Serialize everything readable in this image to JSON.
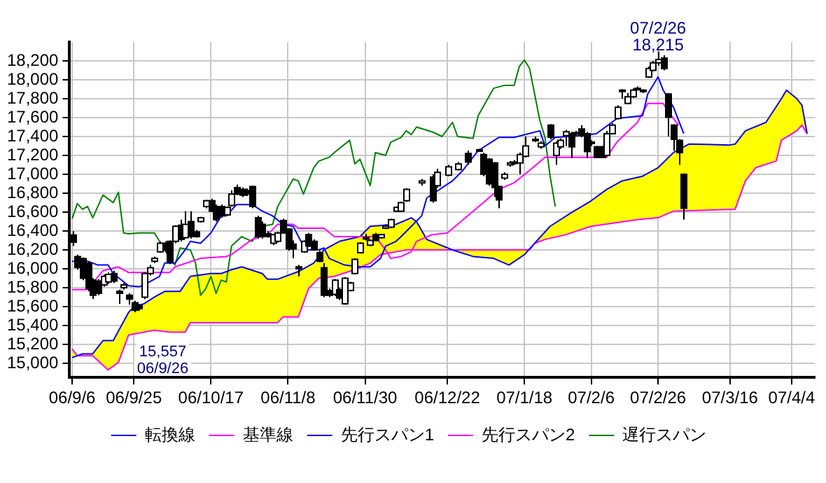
{
  "chart_data": {
    "type": "candlestick",
    "categories": [
      "06/9/6",
      null,
      null,
      null,
      null,
      null,
      null,
      null,
      null,
      null,
      null,
      null,
      "06/9/25",
      null,
      null,
      null,
      null,
      null,
      null,
      null,
      null,
      null,
      null,
      null,
      null,
      null,
      null,
      "06/10/17",
      null,
      null,
      null,
      null,
      null,
      null,
      null,
      null,
      null,
      null,
      null,
      null,
      null,
      null,
      "06/11/8",
      null,
      null,
      null,
      null,
      null,
      null,
      null,
      null,
      null,
      null,
      null,
      null,
      null,
      null,
      "06/11/30",
      null,
      null,
      null,
      null,
      null,
      null,
      null,
      null,
      null,
      null,
      null,
      null,
      null,
      null,
      null,
      "06/12/22",
      null,
      null,
      null,
      null,
      null,
      null,
      null,
      null,
      null,
      null,
      null,
      null,
      null,
      null,
      "07/1/18",
      null,
      null,
      null,
      null,
      null,
      null,
      null,
      null,
      null,
      null,
      null,
      null,
      "07/2/6",
      null,
      null,
      null,
      null,
      null,
      null,
      null,
      null,
      null,
      null,
      null,
      null,
      "07/2/26",
      null,
      null,
      null,
      null,
      null,
      null,
      null,
      null,
      null,
      null,
      null,
      null,
      null,
      "07/3/16",
      null,
      null,
      null,
      null,
      null,
      null,
      null,
      null,
      null,
      null,
      null,
      "07/4/4",
      null,
      null,
      null,
      null
    ],
    "ohlc": [
      [
        16358,
        16400,
        16240,
        16281
      ],
      [
        16130,
        16150,
        15990,
        16015
      ],
      [
        16107,
        16120,
        15880,
        15900
      ],
      [
        16060,
        16080,
        15760,
        15790
      ],
      [
        15880,
        15900,
        15680,
        15720
      ],
      [
        15870,
        15890,
        15720,
        15740
      ],
      [
        15830,
        15940,
        15810,
        15920
      ],
      [
        15860,
        15960,
        15840,
        15940
      ],
      [
        15950,
        15980,
        15850,
        15870
      ],
      [
        15760,
        15780,
        15630,
        15740
      ],
      [
        15800,
        15850,
        15780,
        15830
      ],
      [
        15720,
        15740,
        15620,
        15680
      ],
      [
        15640,
        15660,
        15540,
        15560
      ],
      [
        15610,
        15630,
        15557,
        15580
      ],
      [
        15700,
        15960,
        15680,
        15950
      ],
      [
        15950,
        16040,
        15930,
        16010
      ],
      [
        16080,
        16130,
        16060,
        16110
      ],
      [
        16180,
        16290,
        16170,
        16270
      ],
      [
        16270,
        16290,
        16180,
        16200
      ],
      [
        16290,
        16300,
        16050,
        16070
      ],
      [
        16290,
        16460,
        16270,
        16450
      ],
      [
        16460,
        16520,
        16290,
        16310
      ],
      [
        16330,
        16610,
        16320,
        16470
      ],
      [
        16500,
        16610,
        16320,
        16340
      ],
      [
        16390,
        16410,
        16330,
        16340
      ],
      [
        16500,
        16550,
        16490,
        16540
      ],
      [
        16660,
        16730,
        16640,
        16720
      ],
      [
        16720,
        16740,
        16600,
        16610
      ],
      [
        16660,
        16680,
        16500,
        16520
      ],
      [
        16660,
        16680,
        16540,
        16560
      ],
      [
        16570,
        16660,
        16560,
        16650
      ],
      [
        16670,
        16830,
        16660,
        16790
      ],
      [
        16860,
        16890,
        16780,
        16790
      ],
      [
        16840,
        16860,
        16760,
        16780
      ],
      [
        16830,
        16850,
        16770,
        16790
      ],
      [
        16870,
        16880,
        16640,
        16660
      ],
      [
        16540,
        16560,
        16320,
        16340
      ],
      [
        16470,
        16500,
        16320,
        16340
      ],
      [
        16370,
        16400,
        16330,
        16340
      ],
      [
        16270,
        16370,
        16250,
        16360
      ],
      [
        16290,
        16390,
        16280,
        16380
      ],
      [
        16510,
        16530,
        16370,
        16380
      ],
      [
        16420,
        16430,
        16190,
        16210
      ],
      [
        16260,
        16300,
        16110,
        16210
      ],
      [
        16020,
        16040,
        15920,
        16000
      ],
      [
        16180,
        16300,
        16170,
        16290
      ],
      [
        16360,
        16380,
        16230,
        16240
      ],
      [
        16290,
        16310,
        16190,
        16200
      ],
      [
        16170,
        16190,
        16070,
        16080
      ],
      [
        16010,
        16060,
        15700,
        15720
      ],
      [
        15770,
        15790,
        15700,
        15720
      ],
      [
        15730,
        15890,
        15710,
        15880
      ],
      [
        15780,
        15800,
        15670,
        15690
      ],
      [
        15630,
        15910,
        15620,
        15900
      ],
      [
        15770,
        15860,
        15760,
        15850
      ],
      [
        15950,
        16110,
        15940,
        16100
      ],
      [
        16170,
        16280,
        16160,
        16270
      ],
      [
        16320,
        16370,
        16300,
        16330
      ],
      [
        16250,
        16310,
        16240,
        16300
      ],
      [
        16360,
        16380,
        16290,
        16300
      ],
      [
        16330,
        16370,
        16320,
        16360
      ],
      [
        16430,
        16470,
        16420,
        16450
      ],
      [
        16440,
        16530,
        16430,
        16520
      ],
      [
        16610,
        16660,
        16600,
        16650
      ],
      [
        16610,
        16710,
        16600,
        16700
      ],
      [
        16720,
        16850,
        16710,
        16840
      ],
      null,
      null,
      [
        16910,
        16950,
        16880,
        16930
      ],
      null,
      [
        16970,
        17000,
        16700,
        16720
      ],
      [
        16880,
        17060,
        16860,
        17020
      ],
      null,
      [
        16990,
        17100,
        16980,
        17080
      ],
      null,
      [
        17050,
        17130,
        17040,
        17110
      ],
      null,
      [
        17220,
        17250,
        17100,
        17130
      ],
      null,
      [
        17250,
        17270,
        17240,
        17260
      ],
      [
        17210,
        17230,
        16980,
        17000
      ],
      [
        17160,
        17170,
        16880,
        16900
      ],
      [
        17120,
        17130,
        16760,
        16860
      ],
      [
        16870,
        16880,
        16640,
        16730
      ],
      [
        16960,
        17020,
        16940,
        17000
      ],
      [
        17100,
        17140,
        17080,
        17120
      ],
      [
        17120,
        17150,
        17100,
        17130
      ],
      [
        17120,
        17230,
        17000,
        17210
      ],
      [
        17190,
        17400,
        17180,
        17300
      ],
      null,
      [
        17360,
        17400,
        17340,
        17370
      ],
      [
        17290,
        17350,
        17270,
        17330
      ],
      null,
      [
        17520,
        17530,
        17370,
        17390
      ],
      [
        17200,
        17350,
        17100,
        17330
      ],
      [
        17290,
        17380,
        17270,
        17360
      ],
      [
        17410,
        17470,
        17300,
        17450
      ],
      [
        17430,
        17450,
        17170,
        17290
      ],
      [
        17430,
        17460,
        17410,
        17440
      ],
      [
        17480,
        17520,
        17390,
        17410
      ],
      [
        17430,
        17450,
        17170,
        17240
      ],
      [
        17330,
        17360,
        17300,
        17340
      ],
      [
        17290,
        17300,
        17170,
        17180
      ],
      [
        17290,
        17300,
        17170,
        17180
      ],
      [
        17200,
        17460,
        17190,
        17430
      ],
      [
        17430,
        17540,
        17420,
        17520
      ],
      [
        17590,
        17730,
        17580,
        17710
      ],
      [
        17880,
        17900,
        17800,
        17890
      ],
      [
        17750,
        17860,
        17740,
        17820
      ],
      [
        17820,
        17910,
        17810,
        17890
      ],
      [
        17900,
        17930,
        17890,
        17910
      ],
      [
        17880,
        17900,
        17860,
        17890
      ],
      [
        18030,
        18140,
        18020,
        18120
      ],
      [
        18100,
        18200,
        18090,
        18180
      ],
      [
        18180,
        18300,
        18150,
        18215
      ],
      [
        18230,
        18260,
        18100,
        18119
      ],
      [
        17850,
        17860,
        17400,
        17604
      ],
      [
        17520,
        17530,
        17250,
        17370
      ],
      [
        17360,
        17370,
        17100,
        17230
      ],
      [
        17000,
        17010,
        16520,
        16640
      ],
      null,
      null,
      null,
      null,
      null,
      null,
      null,
      null,
      null,
      null,
      null,
      null,
      null,
      null,
      null,
      null,
      null,
      null,
      null,
      null,
      null,
      null,
      null,
      null,
      null
    ],
    "series": [
      {
        "type": "line",
        "name": "転換線",
        "color": "#0000ff",
        "values": [
          16080,
          null,
          null,
          16080,
          null,
          16040,
          null,
          16040,
          15950,
          null,
          null,
          15820,
          null,
          15810,
          15830,
          null,
          null,
          15920,
          16060,
          null,
          16060,
          null,
          16200,
          16290,
          null,
          16270,
          null,
          16380,
          null,
          16560,
          16560,
          null,
          16680,
          null,
          null,
          16680,
          null,
          16610,
          null,
          16560,
          null,
          16470,
          null,
          16450,
          null,
          16240,
          16200,
          null,
          16200,
          16220,
          16110,
          null,
          null,
          16040,
          null,
          null,
          16020,
          null,
          16020,
          null,
          16110,
          16240,
          null,
          16290,
          16340,
          null,
          16450,
          null,
          16560,
          16750,
          null,
          null,
          null,
          null,
          16930,
          null,
          17040,
          null,
          null,
          17250,
          null,
          null,
          null,
          17390,
          null,
          null,
          17390,
          null,
          null,
          null,
          null,
          17460,
          17300,
          null,
          17390,
          null,
          null,
          null,
          null,
          17410,
          null,
          null,
          17430,
          null,
          null,
          null,
          17590,
          null,
          null,
          null,
          null,
          17620,
          17850,
          null,
          18030,
          17890,
          null,
          17710,
          null,
          17430,
          null,
          null,
          null,
          null,
          null,
          null,
          null,
          null,
          null,
          null,
          null,
          null,
          null,
          null,
          null,
          null,
          null,
          null,
          null,
          null,
          null,
          null,
          null,
          null,
          null
        ]
      },
      {
        "type": "line",
        "name": "基準線",
        "color": "#ff00ff",
        "values": [
          15780,
          null,
          null,
          15780,
          null,
          null,
          15980,
          null,
          null,
          16020,
          null,
          15960,
          null,
          null,
          null,
          null,
          null,
          null,
          null,
          15960,
          16020,
          null,
          null,
          null,
          null,
          16110,
          null,
          null,
          null,
          null,
          16130,
          16150,
          null,
          null,
          null,
          16310,
          null,
          null,
          16360,
          null,
          16470,
          null,
          null,
          16470,
          16430,
          null,
          null,
          null,
          null,
          16430,
          null,
          16340,
          null,
          null,
          null,
          null,
          null,
          null,
          null,
          16340,
          null,
          16200,
          16110,
          null,
          16130,
          null,
          16180,
          16290,
          null,
          null,
          16360,
          null,
          null,
          16380,
          null,
          16470,
          null,
          null,
          null,
          null,
          16700,
          null,
          null,
          16840,
          null,
          null,
          16910,
          null,
          null,
          17040,
          null,
          null,
          17180,
          null,
          null,
          null,
          null,
          null,
          null,
          null,
          null,
          null,
          null,
          null,
          17180,
          null,
          17340,
          null,
          null,
          null,
          17550,
          null,
          17750,
          null,
          null,
          17750,
          17660,
          null,
          17520,
          null,
          null,
          null,
          null,
          null,
          null,
          null,
          null,
          null,
          null,
          null,
          null,
          null,
          null,
          null,
          null,
          null,
          null,
          null,
          null,
          null,
          null,
          null,
          null,
          null,
          null
        ]
      },
      {
        "type": "line",
        "name": "先行スパン1",
        "color": "#0000ff",
        "lower": [
          15150,
          15080,
          15080,
          null,
          15080,
          null,
          14980,
          14930,
          14970,
          15010,
          null,
          15300,
          15310,
          null,
          15330,
          null,
          15350,
          null,
          15340,
          15330,
          null,
          15330,
          15330,
          15430,
          null,
          null,
          null,
          15430,
          null,
          15430,
          null,
          15430,
          null,
          15430,
          null,
          null,
          null,
          15430,
          15430,
          null,
          15430,
          15490,
          null,
          null,
          15490,
          null,
          15790,
          15850,
          15900,
          15910,
          null,
          15920,
          15940,
          null,
          null,
          15990,
          16010,
          null,
          16060,
          null,
          16150,
          null,
          null,
          16180,
          null,
          16200,
          16200,
          16200,
          null,
          16200,
          null,
          null,
          null,
          null,
          16200,
          null,
          null,
          null,
          16200,
          null,
          null,
          null,
          16200,
          null,
          null,
          16200,
          null,
          null,
          16200,
          16200,
          16270,
          null,
          16310,
          16320,
          null,
          null,
          16360,
          16380,
          null,
          null,
          null,
          16450,
          null,
          null,
          16470,
          null,
          null,
          16490,
          null,
          null,
          16520,
          16520,
          null,
          null,
          16540,
          null,
          null,
          16610,
          null,
          null,
          16610,
          null,
          null,
          null,
          null,
          null,
          null,
          null,
          16630,
          16630,
          null,
          16930,
          null,
          17070,
          null,
          17100,
          null,
          17140,
          17360,
          17390,
          null,
          17460,
          17520,
          17430,
          null
        ],
        "upper": [
          15060,
          15080,
          15100,
          null,
          15100,
          null,
          15240,
          15240,
          15240,
          15340,
          null,
          15540,
          15600,
          null,
          15630,
          null,
          15700,
          null,
          15760,
          15760,
          null,
          15760,
          15840,
          15920,
          null,
          null,
          null,
          15950,
          null,
          15950,
          null,
          15990,
          null,
          16020,
          null,
          null,
          null,
          15950,
          15890,
          null,
          15890,
          15910,
          null,
          null,
          15970,
          null,
          16030,
          16060,
          16130,
          16200,
          null,
          16260,
          16290,
          null,
          null,
          16330,
          16340,
          null,
          16450,
          null,
          16460,
          null,
          null,
          16470,
          null,
          16520,
          16540,
          16500,
          null,
          16310,
          null,
          null,
          null,
          null,
          16200,
          null,
          null,
          null,
          16130,
          null,
          null,
          null,
          16110,
          null,
          null,
          16040,
          null,
          null,
          16150,
          16210,
          16270,
          null,
          16390,
          16450,
          null,
          null,
          16560,
          16590,
          null,
          null,
          null,
          16720,
          null,
          null,
          16840,
          null,
          null,
          16930,
          null,
          null,
          16970,
          16980,
          null,
          null,
          17070,
          null,
          null,
          17230,
          null,
          null,
          17320,
          null,
          null,
          null,
          null,
          null,
          null,
          null,
          17310,
          17320,
          null,
          17460,
          null,
          17500,
          null,
          17550,
          null,
          17720,
          17800,
          17890,
          null,
          17800,
          17730,
          17430,
          null
        ],
        "values": [
          15060,
          null,
          15100,
          null,
          15100,
          null,
          15240,
          null,
          15240,
          null,
          null,
          15540,
          15600,
          null,
          15630,
          null,
          15700,
          null,
          15760,
          null,
          null,
          15760,
          null,
          15920,
          null,
          null,
          null,
          15950,
          null,
          15950,
          null,
          15990,
          null,
          16020,
          null,
          null,
          null,
          15950,
          15890,
          null,
          15890,
          null,
          null,
          null,
          15970,
          null,
          null,
          16060,
          null,
          16200,
          null,
          null,
          16290,
          null,
          null,
          null,
          16340,
          null,
          16450,
          null,
          null,
          null,
          null,
          16470,
          null,
          null,
          16540,
          16500,
          null,
          16310,
          null,
          null,
          null,
          null,
          16200,
          null,
          null,
          null,
          16130,
          null,
          null,
          null,
          16110,
          null,
          null,
          16040,
          null,
          null,
          16150,
          null,
          16270,
          null,
          null,
          16450,
          null,
          null,
          null,
          16590,
          null,
          null,
          null,
          16720,
          null,
          null,
          16840,
          null,
          null,
          16930,
          null,
          null,
          null,
          16980,
          null,
          null,
          17070,
          null,
          null,
          17230,
          null,
          null,
          17320,
          null,
          null,
          null,
          null,
          null,
          null,
          null,
          17310,
          17320,
          null,
          17460,
          null,
          null,
          null,
          17550,
          null,
          null,
          17800,
          17890,
          null,
          17800,
          17730,
          17430,
          null
        ]
      },
      {
        "type": "line",
        "name": "先行スパン2",
        "color": "#ff00ff",
        "values": [
          15150,
          15080,
          null,
          null,
          15080,
          null,
          null,
          14930,
          null,
          15010,
          null,
          15300,
          null,
          null,
          null,
          null,
          15350,
          null,
          null,
          15330,
          null,
          null,
          15330,
          15430,
          null,
          null,
          null,
          null,
          null,
          null,
          null,
          null,
          null,
          null,
          null,
          null,
          null,
          null,
          null,
          null,
          15430,
          15490,
          null,
          null,
          15490,
          null,
          15790,
          null,
          15900,
          null,
          null,
          15920,
          null,
          null,
          null,
          15990,
          null,
          null,
          16060,
          null,
          16150,
          null,
          null,
          null,
          null,
          16200,
          null,
          null,
          null,
          null,
          null,
          null,
          null,
          null,
          null,
          null,
          null,
          null,
          null,
          null,
          null,
          null,
          null,
          null,
          null,
          null,
          null,
          null,
          null,
          16200,
          16270,
          null,
          16310,
          null,
          null,
          null,
          16360,
          null,
          null,
          null,
          null,
          16450,
          null,
          null,
          null,
          null,
          null,
          null,
          null,
          null,
          16520,
          null,
          null,
          null,
          16540,
          null,
          null,
          16610,
          null,
          null,
          null,
          null,
          null,
          null,
          null,
          null,
          null,
          null,
          null,
          16630,
          null,
          16930,
          null,
          17070,
          null,
          null,
          null,
          17140,
          17360,
          null,
          null,
          17460,
          17520,
          17430,
          null
        ]
      },
      {
        "type": "line",
        "name": "遅行スパン",
        "color": "#008000",
        "values": [
          16530,
          16690,
          16630,
          16660,
          16540,
          null,
          16780,
          16740,
          16700,
          16810,
          16380,
          16370,
          null,
          16380,
          null,
          null,
          16380,
          16290,
          null,
          16110,
          16040,
          16220,
          null,
          16200,
          16060,
          15720,
          15790,
          15920,
          15740,
          15880,
          15860,
          16240,
          null,
          16340,
          null,
          16290,
          null,
          16450,
          null,
          16470,
          16660,
          null,
          null,
          16950,
          16930,
          16790,
          null,
          17070,
          17140,
          null,
          17180,
          17230,
          null,
          null,
          17360,
          17110,
          17160,
          null,
          16880,
          17230,
          null,
          17200,
          17340,
          null,
          17390,
          17460,
          17420,
          17500,
          null,
          null,
          17450,
          null,
          17400,
          null,
          17550,
          17400,
          null,
          null,
          17380,
          17620,
          null,
          null,
          17910,
          null,
          17940,
          null,
          17940,
          18140,
          18210,
          18120,
          null,
          17570,
          17390,
          16980,
          16660,
          null,
          null,
          null,
          null,
          null,
          null,
          null,
          null,
          null,
          null,
          null,
          null,
          null,
          null,
          null,
          null,
          null,
          null,
          null,
          null,
          null,
          null,
          null,
          null,
          null,
          null,
          null,
          null,
          null,
          null,
          null,
          null,
          null,
          null,
          null,
          null,
          null,
          null,
          null,
          null,
          null,
          null,
          null,
          null,
          null,
          null,
          null,
          null,
          null,
          null
        ]
      }
    ],
    "ylim": [
      14850,
      18400
    ],
    "yticks": [
      {
        "value": 15000,
        "label": "15,000"
      },
      {
        "value": 15200,
        "label": "15,200"
      },
      {
        "value": 15400,
        "label": "15,400"
      },
      {
        "value": 15600,
        "label": "15,600"
      },
      {
        "value": 15800,
        "label": "15,800"
      },
      {
        "value": 16000,
        "label": "16,000"
      },
      {
        "value": 16200,
        "label": "16,200"
      },
      {
        "value": 16400,
        "label": "16,400"
      },
      {
        "value": 16600,
        "label": "16,600"
      },
      {
        "value": 16800,
        "label": "16,800"
      },
      {
        "value": 17000,
        "label": "17,000"
      },
      {
        "value": 17200,
        "label": "17,200"
      },
      {
        "value": 17400,
        "label": "17,400"
      },
      {
        "value": 17600,
        "label": "17,600"
      },
      {
        "value": 17800,
        "label": "17,800"
      },
      {
        "value": 18000,
        "label": "18,000"
      },
      {
        "value": 18200,
        "label": "18,200"
      }
    ],
    "grid": true,
    "legend": "bottom",
    "annotations": [
      {
        "text": "07/2/26\n18,215",
        "x": "07/2/26",
        "y": 18215
      },
      "15,557\n06/9/26"
    ]
  }
}
